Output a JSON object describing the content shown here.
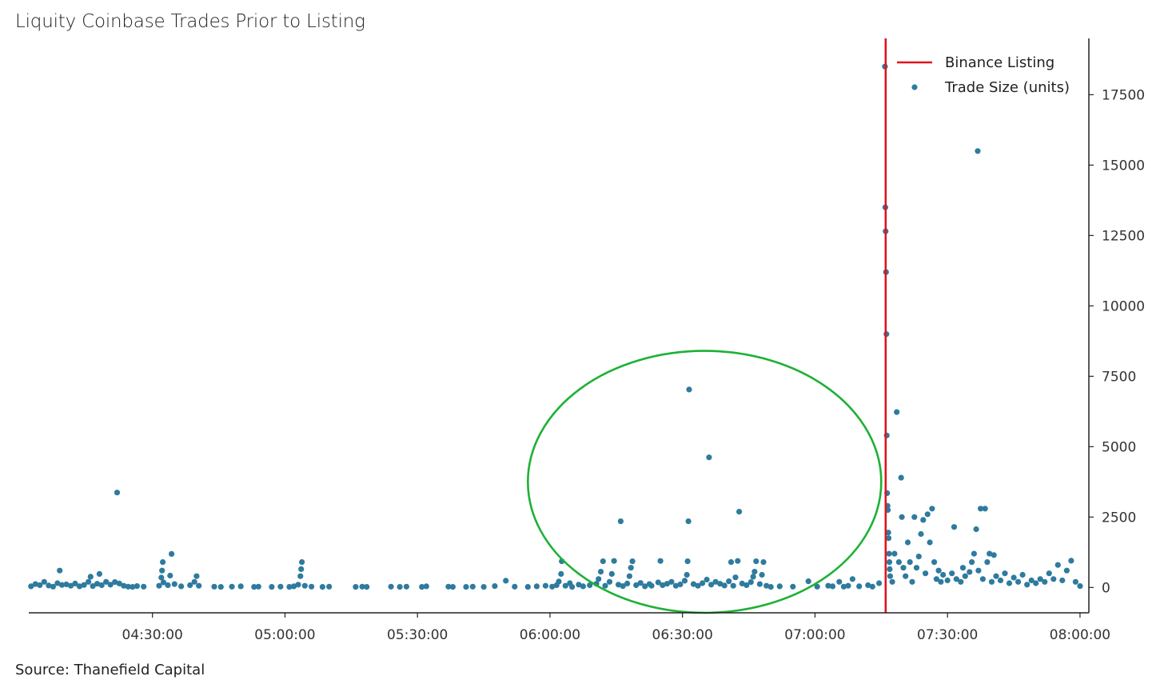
{
  "title": "Liquity Coinbase Trades Prior to Listing",
  "source": "Source: Thanefield Capital",
  "colors": {
    "points": "#2e7b9e",
    "listing_line": "#e0141e",
    "highlight_ellipse": "#1db135",
    "axis": "#222222"
  },
  "chart_data": {
    "type": "scatter",
    "title": "Liquity Coinbase Trades Prior to Listing",
    "xlabel": "",
    "ylabel": "",
    "x_axis_type": "time",
    "xlim": [
      "04:02:00",
      "08:02:00"
    ],
    "ylim": [
      -900,
      19500
    ],
    "x_ticks": [
      "04:30:00",
      "05:00:00",
      "05:30:00",
      "06:00:00",
      "06:30:00",
      "07:00:00",
      "07:30:00",
      "08:00:00"
    ],
    "y_ticks": [
      0,
      2500,
      5000,
      7500,
      10000,
      12500,
      15000,
      17500
    ],
    "y_axis_side": "right",
    "legend_position": "top-right",
    "legend": [
      {
        "label": "Binance Listing",
        "kind": "line"
      },
      {
        "label": "Trade Size (units)",
        "kind": "marker"
      }
    ],
    "binance_listing_time": "07:16:00",
    "highlight_region": {
      "x_from": "05:55:00",
      "x_to": "07:15:00",
      "y_from": -900,
      "y_to": 8400
    },
    "series": [
      {
        "name": "Trade Size (units)",
        "points": [
          [
            "04:02:30",
            40
          ],
          [
            "04:03:30",
            120
          ],
          [
            "04:04:30",
            80
          ],
          [
            "04:05:30",
            200
          ],
          [
            "04:06:30",
            70
          ],
          [
            "04:07:30",
            30
          ],
          [
            "04:08:30",
            150
          ],
          [
            "04:09:00",
            600
          ],
          [
            "04:09:30",
            90
          ],
          [
            "04:10:30",
            110
          ],
          [
            "04:11:30",
            60
          ],
          [
            "04:12:30",
            140
          ],
          [
            "04:13:30",
            40
          ],
          [
            "04:14:30",
            90
          ],
          [
            "04:15:30",
            200
          ],
          [
            "04:16:00",
            380
          ],
          [
            "04:16:30",
            50
          ],
          [
            "04:17:30",
            130
          ],
          [
            "04:18:00",
            480
          ],
          [
            "04:18:30",
            80
          ],
          [
            "04:19:30",
            200
          ],
          [
            "04:20:30",
            100
          ],
          [
            "04:21:30",
            190
          ],
          [
            "04:22:00",
            3370
          ],
          [
            "04:22:30",
            140
          ],
          [
            "04:23:30",
            60
          ],
          [
            "04:24:30",
            30
          ],
          [
            "04:25:30",
            20
          ],
          [
            "04:26:30",
            50
          ],
          [
            "04:28:00",
            30
          ],
          [
            "04:31:30",
            60
          ],
          [
            "04:32:00",
            350
          ],
          [
            "04:32:10",
            600
          ],
          [
            "04:32:20",
            900
          ],
          [
            "04:32:30",
            180
          ],
          [
            "04:33:30",
            80
          ],
          [
            "04:34:00",
            420
          ],
          [
            "04:34:20",
            1190
          ],
          [
            "04:35:00",
            120
          ],
          [
            "04:36:30",
            40
          ],
          [
            "04:38:30",
            80
          ],
          [
            "04:39:30",
            200
          ],
          [
            "04:40:00",
            400
          ],
          [
            "04:40:30",
            60
          ],
          [
            "04:44:00",
            30
          ],
          [
            "04:45:30",
            20
          ],
          [
            "04:48:00",
            30
          ],
          [
            "04:50:00",
            40
          ],
          [
            "04:53:00",
            20
          ],
          [
            "04:54:00",
            30
          ],
          [
            "04:57:00",
            20
          ],
          [
            "04:59:00",
            30
          ],
          [
            "05:01:00",
            20
          ],
          [
            "05:02:00",
            40
          ],
          [
            "05:03:00",
            100
          ],
          [
            "05:03:30",
            400
          ],
          [
            "05:03:40",
            650
          ],
          [
            "05:03:50",
            900
          ],
          [
            "05:04:30",
            60
          ],
          [
            "05:06:00",
            30
          ],
          [
            "05:08:30",
            20
          ],
          [
            "05:10:00",
            30
          ],
          [
            "05:16:00",
            20
          ],
          [
            "05:17:30",
            30
          ],
          [
            "05:18:30",
            20
          ],
          [
            "05:24:00",
            30
          ],
          [
            "05:26:00",
            20
          ],
          [
            "05:27:30",
            30
          ],
          [
            "05:31:00",
            20
          ],
          [
            "05:32:00",
            40
          ],
          [
            "05:37:00",
            30
          ],
          [
            "05:38:00",
            20
          ],
          [
            "05:41:00",
            20
          ],
          [
            "05:42:30",
            30
          ],
          [
            "05:45:00",
            20
          ],
          [
            "05:47:30",
            50
          ],
          [
            "05:50:00",
            240
          ],
          [
            "05:52:00",
            30
          ],
          [
            "05:55:00",
            20
          ],
          [
            "05:57:00",
            40
          ],
          [
            "05:59:00",
            60
          ],
          [
            "06:00:30",
            30
          ],
          [
            "06:01:30",
            80
          ],
          [
            "06:02:00",
            210
          ],
          [
            "06:02:30",
            480
          ],
          [
            "06:02:40",
            930
          ],
          [
            "06:03:30",
            60
          ],
          [
            "06:04:30",
            150
          ],
          [
            "06:05:00",
            20
          ],
          [
            "06:06:30",
            100
          ],
          [
            "06:07:30",
            40
          ],
          [
            "06:09:00",
            80
          ],
          [
            "06:10:30",
            130
          ],
          [
            "06:11:00",
            300
          ],
          [
            "06:11:30",
            560
          ],
          [
            "06:12:00",
            930
          ],
          [
            "06:12:30",
            60
          ],
          [
            "06:13:30",
            200
          ],
          [
            "06:14:00",
            480
          ],
          [
            "06:14:30",
            940
          ],
          [
            "06:15:30",
            100
          ],
          [
            "06:16:00",
            2350
          ],
          [
            "06:16:30",
            50
          ],
          [
            "06:17:30",
            140
          ],
          [
            "06:18:00",
            400
          ],
          [
            "06:18:20",
            700
          ],
          [
            "06:18:40",
            930
          ],
          [
            "06:19:30",
            80
          ],
          [
            "06:20:30",
            160
          ],
          [
            "06:21:30",
            40
          ],
          [
            "06:22:30",
            120
          ],
          [
            "06:23:00",
            60
          ],
          [
            "06:24:30",
            180
          ],
          [
            "06:25:00",
            940
          ],
          [
            "06:25:30",
            80
          ],
          [
            "06:26:30",
            130
          ],
          [
            "06:27:30",
            200
          ],
          [
            "06:28:30",
            60
          ],
          [
            "06:29:30",
            110
          ],
          [
            "06:30:30",
            240
          ],
          [
            "06:31:00",
            450
          ],
          [
            "06:31:10",
            930
          ],
          [
            "06:31:20",
            2350
          ],
          [
            "06:31:30",
            7030
          ],
          [
            "06:32:30",
            120
          ],
          [
            "06:33:30",
            60
          ],
          [
            "06:34:30",
            150
          ],
          [
            "06:35:30",
            280
          ],
          [
            "06:36:00",
            4620
          ],
          [
            "06:36:30",
            100
          ],
          [
            "06:37:30",
            200
          ],
          [
            "06:38:30",
            130
          ],
          [
            "06:39:30",
            70
          ],
          [
            "06:40:30",
            220
          ],
          [
            "06:41:00",
            900
          ],
          [
            "06:41:30",
            60
          ],
          [
            "06:42:00",
            360
          ],
          [
            "06:42:30",
            940
          ],
          [
            "06:42:50",
            2690
          ],
          [
            "06:43:30",
            140
          ],
          [
            "06:44:30",
            80
          ],
          [
            "06:45:30",
            190
          ],
          [
            "06:46:00",
            380
          ],
          [
            "06:46:20",
            560
          ],
          [
            "06:46:40",
            930
          ],
          [
            "06:47:30",
            120
          ],
          [
            "06:48:00",
            450
          ],
          [
            "06:48:20",
            900
          ],
          [
            "06:49:00",
            60
          ],
          [
            "06:50:00",
            20
          ],
          [
            "06:52:00",
            40
          ],
          [
            "06:55:00",
            30
          ],
          [
            "06:58:30",
            220
          ],
          [
            "07:00:30",
            30
          ],
          [
            "07:03:00",
            60
          ],
          [
            "07:04:00",
            40
          ],
          [
            "07:05:30",
            200
          ],
          [
            "07:06:30",
            30
          ],
          [
            "07:07:30",
            60
          ],
          [
            "07:08:30",
            300
          ],
          [
            "07:10:00",
            40
          ],
          [
            "07:12:00",
            80
          ],
          [
            "07:13:00",
            30
          ],
          [
            "07:14:30",
            150
          ],
          [
            "07:15:50",
            18500
          ],
          [
            "07:15:55",
            13500
          ],
          [
            "07:16:00",
            12650
          ],
          [
            "07:16:05",
            11200
          ],
          [
            "07:16:10",
            9000
          ],
          [
            "07:16:15",
            5400
          ],
          [
            "07:16:20",
            3350
          ],
          [
            "07:16:25",
            2900
          ],
          [
            "07:16:30",
            2750
          ],
          [
            "07:16:35",
            1950
          ],
          [
            "07:16:40",
            1750
          ],
          [
            "07:16:45",
            1200
          ],
          [
            "07:16:50",
            900
          ],
          [
            "07:16:55",
            650
          ],
          [
            "07:17:00",
            400
          ],
          [
            "07:17:30",
            200
          ],
          [
            "07:18:00",
            1200
          ],
          [
            "07:18:30",
            6230
          ],
          [
            "07:19:00",
            900
          ],
          [
            "07:19:30",
            3900
          ],
          [
            "07:19:40",
            2500
          ],
          [
            "07:20:00",
            700
          ],
          [
            "07:20:30",
            400
          ],
          [
            "07:21:00",
            1600
          ],
          [
            "07:21:30",
            900
          ],
          [
            "07:22:00",
            200
          ],
          [
            "07:22:30",
            2500
          ],
          [
            "07:23:00",
            700
          ],
          [
            "07:23:30",
            1100
          ],
          [
            "07:24:00",
            1900
          ],
          [
            "07:24:30",
            2400
          ],
          [
            "07:25:00",
            500
          ],
          [
            "07:25:30",
            2600
          ],
          [
            "07:26:00",
            1600
          ],
          [
            "07:26:30",
            2800
          ],
          [
            "07:27:00",
            900
          ],
          [
            "07:27:30",
            300
          ],
          [
            "07:28:00",
            600
          ],
          [
            "07:28:30",
            200
          ],
          [
            "07:29:00",
            450
          ],
          [
            "07:30:00",
            250
          ],
          [
            "07:31:00",
            500
          ],
          [
            "07:31:30",
            2150
          ],
          [
            "07:32:00",
            300
          ],
          [
            "07:33:00",
            200
          ],
          [
            "07:33:30",
            700
          ],
          [
            "07:34:00",
            400
          ],
          [
            "07:35:00",
            550
          ],
          [
            "07:35:30",
            900
          ],
          [
            "07:36:00",
            1200
          ],
          [
            "07:36:30",
            2070
          ],
          [
            "07:36:50",
            15500
          ],
          [
            "07:37:00",
            600
          ],
          [
            "07:37:30",
            2800
          ],
          [
            "07:38:00",
            300
          ],
          [
            "07:38:30",
            2800
          ],
          [
            "07:39:00",
            900
          ],
          [
            "07:39:30",
            1200
          ],
          [
            "07:40:00",
            200
          ],
          [
            "07:40:30",
            1150
          ],
          [
            "07:41:00",
            400
          ],
          [
            "07:42:00",
            250
          ],
          [
            "07:43:00",
            500
          ],
          [
            "07:44:00",
            150
          ],
          [
            "07:45:00",
            350
          ],
          [
            "07:46:00",
            200
          ],
          [
            "07:47:00",
            450
          ],
          [
            "07:48:00",
            100
          ],
          [
            "07:49:00",
            250
          ],
          [
            "07:50:00",
            150
          ],
          [
            "07:51:00",
            300
          ],
          [
            "07:52:00",
            200
          ],
          [
            "07:53:00",
            500
          ],
          [
            "07:54:00",
            300
          ],
          [
            "07:55:00",
            800
          ],
          [
            "07:56:00",
            250
          ],
          [
            "07:57:00",
            600
          ],
          [
            "07:58:00",
            950
          ],
          [
            "07:59:00",
            200
          ],
          [
            "08:00:00",
            50
          ]
        ]
      }
    ]
  }
}
